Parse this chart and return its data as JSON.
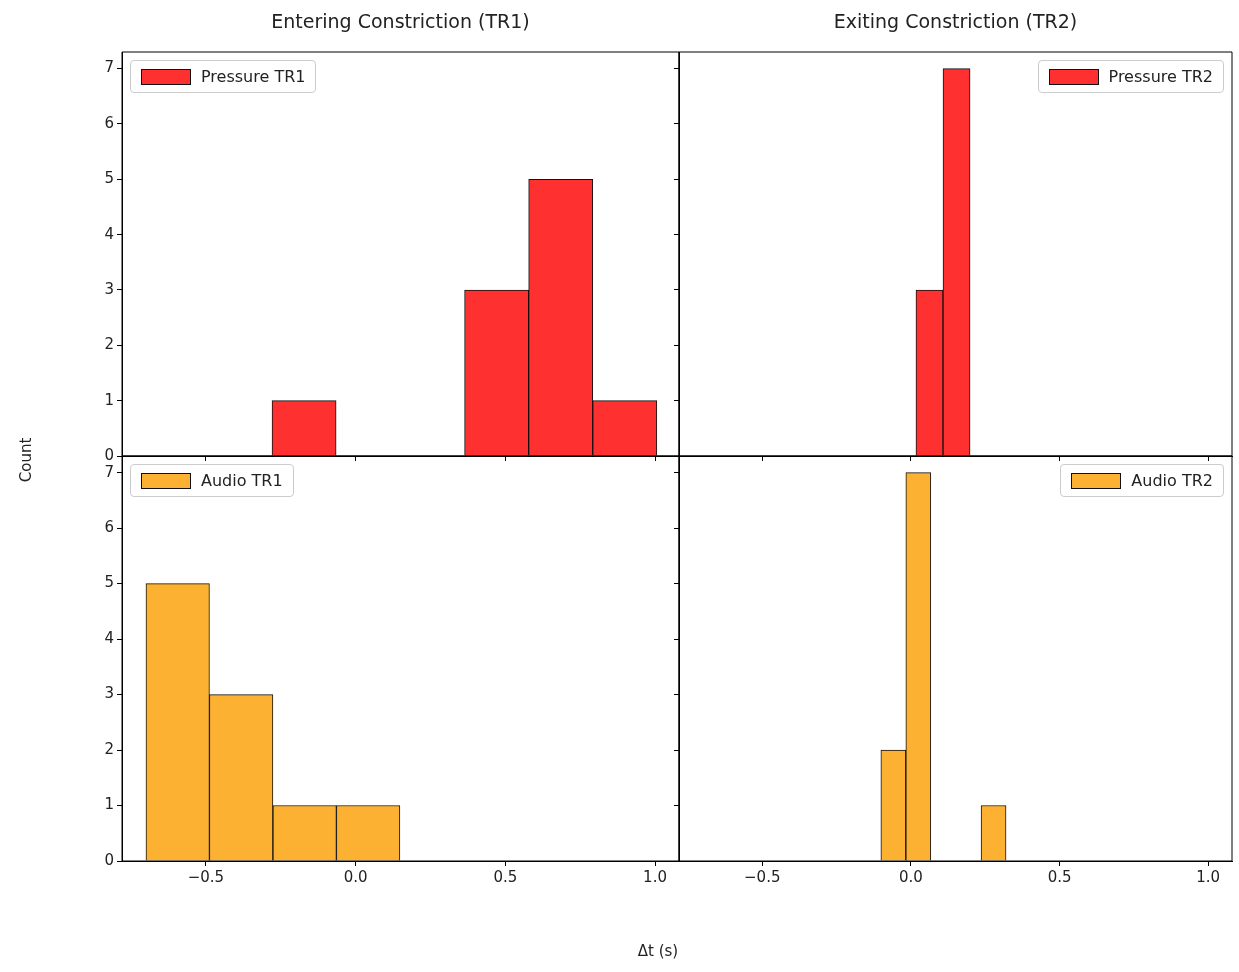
{
  "chart_data": [
    {
      "type": "histogram",
      "title": "Entering Constriction (TR1)",
      "ylabel": "Count",
      "bins": [
        -0.279,
        -0.065,
        0.149,
        0.364,
        0.578,
        0.792,
        1.006
      ],
      "series": [
        {
          "name": "Pressure TR1",
          "color": "#fe3030",
          "values": [
            1,
            0,
            0,
            3,
            5,
            1
          ]
        }
      ],
      "xlim": [
        -0.78,
        1.08
      ],
      "ylim": [
        0,
        7.3
      ],
      "xticks": [
        {
          "value": -0.5,
          "label": null
        },
        {
          "value": 0,
          "label": null
        },
        {
          "value": 0.5,
          "label": null
        },
        {
          "value": 1,
          "label": null
        }
      ],
      "yticks": [
        0,
        1,
        2,
        3,
        4,
        5,
        6,
        7
      ],
      "grid": false,
      "legend": "top left",
      "tick_labels": "y"
    },
    {
      "type": "histogram",
      "title": "Exiting Constriction (TR2)",
      "bins": [
        0.017,
        0.108,
        0.199
      ],
      "series": [
        {
          "name": "Pressure TR2",
          "color": "#fe3030",
          "values": [
            3,
            7
          ]
        }
      ],
      "xlim": [
        -0.78,
        1.08
      ],
      "ylim": [
        0,
        7.3
      ],
      "xticks": [
        {
          "value": -0.5,
          "label": null
        },
        {
          "value": 0,
          "label": null
        },
        {
          "value": 0.5,
          "label": null
        },
        {
          "value": 1,
          "label": null
        }
      ],
      "yticks": [
        0,
        1,
        2,
        3,
        4,
        5,
        6,
        7
      ],
      "grid": false,
      "legend": "top right",
      "tick_labels": false
    },
    {
      "type": "histogram",
      "xlabel": "Δt (s)",
      "bins": [
        -0.7,
        -0.488,
        -0.276,
        -0.064,
        0.148
      ],
      "series": [
        {
          "name": "Audio TR1",
          "color": "#fcb132",
          "values": [
            5,
            3,
            1,
            1
          ]
        }
      ],
      "xlim": [
        -0.78,
        1.08
      ],
      "ylim": [
        0,
        7.3
      ],
      "xticks": [
        {
          "value": -0.5,
          "label": "−0.5"
        },
        {
          "value": 0,
          "label": "0.0"
        },
        {
          "value": 0.5,
          "label": "0.5"
        },
        {
          "value": 1,
          "label": "1.0"
        }
      ],
      "yticks": [
        0,
        1,
        2,
        3,
        4,
        5,
        6,
        7
      ],
      "grid": false,
      "legend": "top left"
    },
    {
      "type": "histogram",
      "bins": [
        -0.101,
        -0.017,
        0.067,
        0.151,
        0.236,
        0.32
      ],
      "series": [
        {
          "name": "Audio TR2",
          "color": "#fcb132",
          "values": [
            2,
            7,
            0,
            0,
            1
          ]
        }
      ],
      "xlim": [
        -0.78,
        1.08
      ],
      "ylim": [
        0,
        7.3
      ],
      "xticks": [
        {
          "value": -0.5,
          "label": "−0.5"
        },
        {
          "value": 0,
          "label": "0.0"
        },
        {
          "value": 0.5,
          "label": "0.5"
        },
        {
          "value": 1,
          "label": "1.0"
        }
      ],
      "yticks": [
        0,
        1,
        2,
        3,
        4,
        5,
        6,
        7
      ],
      "grid": false,
      "legend": "top right",
      "tick_labels": "x"
    }
  ]
}
